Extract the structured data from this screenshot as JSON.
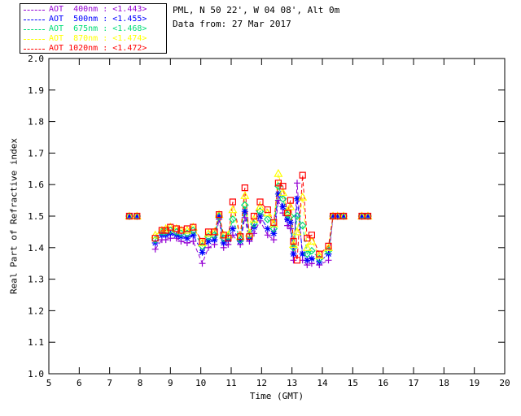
{
  "header": {
    "location_line": "PML, N 50 22', W 04 08', Alt 0m",
    "date_line": "Data from: 27 Mar 2017"
  },
  "legend": {
    "entries": [
      {
        "label": "AOT  400nm : <1.443>",
        "color": "#9400D3"
      },
      {
        "label": "AOT  500nm : <1.455>",
        "color": "#0000FF"
      },
      {
        "label": "AOT  675nm : <1.468>",
        "color": "#00DC78"
      },
      {
        "label": "AOT  870nm : <1.474>",
        "color": "#FFFF00"
      },
      {
        "label": "AOT 1020nm : <1.472>",
        "color": "#FF0000"
      }
    ]
  },
  "chart_data": {
    "type": "line",
    "title": "",
    "xlabel": "Time (GMT)",
    "ylabel": "Real Part of Refractive index",
    "xlim": [
      5,
      20
    ],
    "ylim": [
      1.0,
      2.0
    ],
    "x_ticks": [
      5,
      6,
      7,
      8,
      9,
      10,
      11,
      12,
      13,
      14,
      15,
      16,
      17,
      18,
      19,
      20
    ],
    "y_ticks": [
      1.0,
      1.1,
      1.2,
      1.3,
      1.4,
      1.5,
      1.6,
      1.7,
      1.8,
      1.9,
      2.0
    ],
    "grid": false,
    "line_style": "dashed",
    "legend_position": "top-left",
    "gap_threshold_hours": 0.5,
    "x": [
      7.65,
      7.9,
      8.5,
      8.72,
      8.85,
      9.0,
      9.2,
      9.35,
      9.55,
      9.75,
      10.05,
      10.25,
      10.45,
      10.6,
      10.75,
      10.9,
      11.05,
      11.3,
      11.45,
      11.6,
      11.75,
      11.95,
      12.2,
      12.4,
      12.55,
      12.7,
      12.85,
      12.95,
      13.05,
      13.17,
      13.35,
      13.5,
      13.65,
      13.9,
      14.2,
      14.35,
      14.5,
      14.7,
      15.3,
      15.5
    ],
    "series": [
      {
        "name": "AOT 400nm",
        "mean_label": "<1.443>",
        "color": "#9400D3",
        "marker": "plus",
        "values": [
          1.5,
          1.5,
          1.395,
          1.425,
          1.425,
          1.43,
          1.43,
          1.42,
          1.415,
          1.42,
          1.35,
          1.4,
          1.41,
          1.49,
          1.4,
          1.41,
          1.44,
          1.41,
          1.495,
          1.42,
          1.445,
          1.485,
          1.44,
          1.425,
          1.55,
          1.51,
          1.47,
          1.46,
          1.36,
          1.605,
          1.36,
          1.345,
          1.35,
          1.345,
          1.36,
          1.5,
          1.5,
          1.5,
          1.5,
          1.5
        ]
      },
      {
        "name": "AOT 500nm",
        "mean_label": "<1.455>",
        "color": "#0000FF",
        "marker": "asterisk",
        "values": [
          1.5,
          1.5,
          1.415,
          1.44,
          1.44,
          1.445,
          1.44,
          1.435,
          1.43,
          1.44,
          1.385,
          1.42,
          1.425,
          1.5,
          1.415,
          1.425,
          1.46,
          1.42,
          1.515,
          1.43,
          1.465,
          1.5,
          1.46,
          1.445,
          1.57,
          1.53,
          1.49,
          1.48,
          1.38,
          1.555,
          1.38,
          1.36,
          1.365,
          1.355,
          1.38,
          1.5,
          1.5,
          1.5,
          1.5,
          1.5
        ]
      },
      {
        "name": "AOT 675nm",
        "mean_label": "<1.468>",
        "color": "#00DC78",
        "marker": "diamond",
        "values": [
          1.5,
          1.5,
          1.425,
          1.45,
          1.45,
          1.455,
          1.45,
          1.445,
          1.445,
          1.455,
          1.405,
          1.435,
          1.44,
          1.5,
          1.43,
          1.435,
          1.49,
          1.425,
          1.535,
          1.44,
          1.475,
          1.515,
          1.49,
          1.46,
          1.595,
          1.555,
          1.505,
          1.5,
          1.4,
          1.5,
          1.47,
          1.38,
          1.39,
          1.365,
          1.39,
          1.5,
          1.5,
          1.5,
          1.5,
          1.5
        ]
      },
      {
        "name": "AOT 870nm",
        "mean_label": "<1.474>",
        "color": "#FFFF00",
        "marker": "triangle",
        "values": [
          1.5,
          1.5,
          1.44,
          1.455,
          1.46,
          1.465,
          1.46,
          1.455,
          1.455,
          1.465,
          1.415,
          1.445,
          1.45,
          1.505,
          1.44,
          1.44,
          1.52,
          1.435,
          1.565,
          1.445,
          1.49,
          1.53,
          1.51,
          1.475,
          1.635,
          1.575,
          1.515,
          1.53,
          1.41,
          1.45,
          1.56,
          1.4,
          1.42,
          1.375,
          1.4,
          1.5,
          1.5,
          1.5,
          1.5,
          1.5
        ]
      },
      {
        "name": "AOT 1020nm",
        "mean_label": "<1.472>",
        "color": "#FF0000",
        "marker": "square",
        "values": [
          1.5,
          1.5,
          1.43,
          1.455,
          1.455,
          1.465,
          1.46,
          1.455,
          1.46,
          1.465,
          1.42,
          1.45,
          1.45,
          1.505,
          1.44,
          1.43,
          1.545,
          1.435,
          1.59,
          1.435,
          1.5,
          1.545,
          1.52,
          1.48,
          1.605,
          1.595,
          1.51,
          1.55,
          1.42,
          1.36,
          1.63,
          1.43,
          1.44,
          1.38,
          1.405,
          1.5,
          1.5,
          1.5,
          1.5,
          1.5
        ]
      }
    ]
  }
}
